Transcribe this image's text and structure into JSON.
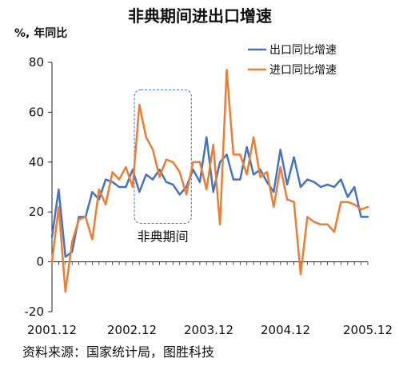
{
  "chart_data": {
    "type": "line",
    "title": "非典期间进出口增速",
    "ylabel": "%, 年同比",
    "ylim": [
      -20,
      80
    ],
    "yticks": [
      -20,
      0,
      20,
      40,
      60,
      80
    ],
    "x_tick_labels": [
      "2001.12",
      "2002.12",
      "2003.12",
      "2004.12",
      "2005.12"
    ],
    "grid": false,
    "legend_position": "top-right",
    "series": [
      {
        "name": "出口同比增速",
        "color": "#4472C4",
        "values": [
          10,
          29,
          2,
          4,
          18,
          18,
          28,
          25,
          33,
          32,
          30,
          30,
          37,
          28,
          35,
          33,
          37,
          32,
          31,
          27,
          30,
          37,
          32,
          50,
          28,
          40,
          43,
          33,
          33,
          46,
          35,
          37,
          32,
          28,
          45,
          31,
          42,
          30,
          33,
          32,
          30,
          31,
          30,
          33,
          26,
          30,
          18,
          18
        ]
      },
      {
        "name": "进口同比增速",
        "color": "#ED7D31",
        "values": [
          0,
          22,
          -12,
          8,
          17,
          18,
          9,
          29,
          23,
          36,
          33,
          38,
          30,
          63,
          50,
          45,
          34,
          41,
          40,
          36,
          27,
          40,
          40,
          29,
          47,
          15,
          77,
          43,
          43,
          35,
          50,
          34,
          36,
          22,
          38,
          25,
          24,
          -5,
          18,
          16,
          15,
          15,
          12,
          24,
          24,
          23,
          21,
          22
        ]
      }
    ],
    "annotations": [
      {
        "text": "非典期间",
        "x_start_index": 12.5,
        "x_end_index": 20.5,
        "y_range": [
          18,
          69
        ]
      }
    ]
  },
  "source": "资料来源：国家统计局，图胜科技"
}
